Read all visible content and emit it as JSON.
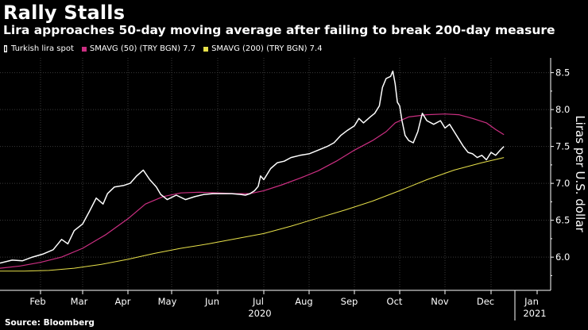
{
  "chart_data": {
    "type": "line",
    "title": "Rally Stalls",
    "subtitle": "Lira approaches 50-day moving average after failing to break 200-day measure",
    "ylabel": "Liras per U.S. dollar",
    "ylim": [
      5.55,
      8.7
    ],
    "yticks": [
      "6.0",
      "6.5",
      "7.0",
      "7.5",
      "8.0",
      "8.5"
    ],
    "month_labels": [
      "Feb",
      "Mar",
      "Apr",
      "May",
      "Jun",
      "Jul",
      "Aug",
      "Sep",
      "Oct",
      "Nov",
      "Dec",
      "Jan"
    ],
    "year_labels": [
      "2020",
      "2021"
    ],
    "source": "Source: Bloomberg",
    "legend": [
      {
        "name": "Turkish lira spot",
        "color": "#ffffff",
        "icon": "line-swatch-icon"
      },
      {
        "name": "SMAVG (50) (TRY BGN) 7.7",
        "color": "#cc2f82"
      },
      {
        "name": "SMAVG (200) (TRY BGN) 7.4",
        "color": "#e8e14a"
      }
    ],
    "series": [
      {
        "name": "Turkish lira spot",
        "color": "#ffffff",
        "width": 1.5,
        "points": [
          [
            0,
            5.92
          ],
          [
            0.3,
            5.96
          ],
          [
            0.55,
            5.95
          ],
          [
            0.8,
            6.0
          ],
          [
            1.05,
            6.04
          ],
          [
            1.3,
            6.1
          ],
          [
            1.5,
            6.24
          ],
          [
            1.65,
            6.18
          ],
          [
            1.8,
            6.36
          ],
          [
            2.0,
            6.45
          ],
          [
            2.15,
            6.62
          ],
          [
            2.3,
            6.8
          ],
          [
            2.45,
            6.72
          ],
          [
            2.55,
            6.86
          ],
          [
            2.7,
            6.95
          ],
          [
            2.9,
            6.97
          ],
          [
            3.05,
            7.0
          ],
          [
            3.2,
            7.1
          ],
          [
            3.35,
            7.18
          ],
          [
            3.5,
            7.05
          ],
          [
            3.65,
            6.95
          ],
          [
            3.75,
            6.85
          ],
          [
            3.9,
            6.78
          ],
          [
            4.1,
            6.84
          ],
          [
            4.3,
            6.78
          ],
          [
            4.5,
            6.82
          ],
          [
            4.7,
            6.85
          ],
          [
            4.9,
            6.86
          ],
          [
            5.1,
            6.86
          ],
          [
            5.3,
            6.86
          ],
          [
            5.5,
            6.85
          ],
          [
            5.6,
            6.84
          ],
          [
            5.7,
            6.86
          ],
          [
            5.8,
            6.9
          ],
          [
            5.88,
            6.96
          ],
          [
            5.93,
            7.1
          ],
          [
            6.0,
            7.05
          ],
          [
            6.15,
            7.2
          ],
          [
            6.3,
            7.28
          ],
          [
            6.45,
            7.3
          ],
          [
            6.6,
            7.35
          ],
          [
            6.8,
            7.38
          ],
          [
            7.0,
            7.4
          ],
          [
            7.2,
            7.45
          ],
          [
            7.4,
            7.5
          ],
          [
            7.55,
            7.55
          ],
          [
            7.7,
            7.65
          ],
          [
            7.85,
            7.72
          ],
          [
            8.0,
            7.78
          ],
          [
            8.1,
            7.88
          ],
          [
            8.2,
            7.82
          ],
          [
            8.35,
            7.9
          ],
          [
            8.45,
            7.95
          ],
          [
            8.55,
            8.05
          ],
          [
            8.62,
            8.3
          ],
          [
            8.7,
            8.42
          ],
          [
            8.8,
            8.45
          ],
          [
            8.85,
            8.52
          ],
          [
            8.9,
            8.35
          ],
          [
            8.95,
            8.1
          ],
          [
            9.0,
            8.05
          ],
          [
            9.05,
            7.85
          ],
          [
            9.12,
            7.65
          ],
          [
            9.2,
            7.58
          ],
          [
            9.3,
            7.55
          ],
          [
            9.4,
            7.7
          ],
          [
            9.5,
            7.95
          ],
          [
            9.6,
            7.85
          ],
          [
            9.75,
            7.8
          ],
          [
            9.9,
            7.85
          ],
          [
            10.0,
            7.75
          ],
          [
            10.1,
            7.8
          ],
          [
            10.2,
            7.7
          ],
          [
            10.3,
            7.6
          ],
          [
            10.4,
            7.5
          ],
          [
            10.5,
            7.42
          ],
          [
            10.6,
            7.4
          ],
          [
            10.7,
            7.35
          ],
          [
            10.8,
            7.38
          ],
          [
            10.9,
            7.32
          ],
          [
            11.0,
            7.42
          ],
          [
            11.1,
            7.38
          ],
          [
            11.2,
            7.45
          ],
          [
            11.28,
            7.5
          ]
        ]
      },
      {
        "name": "SMAVG (50) (TRY BGN) 7.7",
        "color": "#cc2f82",
        "width": 1.2,
        "points": [
          [
            0,
            5.85
          ],
          [
            0.5,
            5.88
          ],
          [
            1.0,
            5.93
          ],
          [
            1.5,
            6.0
          ],
          [
            2.0,
            6.12
          ],
          [
            2.5,
            6.3
          ],
          [
            3.0,
            6.52
          ],
          [
            3.4,
            6.72
          ],
          [
            3.8,
            6.82
          ],
          [
            4.2,
            6.87
          ],
          [
            4.6,
            6.88
          ],
          [
            5.0,
            6.87
          ],
          [
            5.4,
            6.86
          ],
          [
            5.7,
            6.86
          ],
          [
            6.0,
            6.9
          ],
          [
            6.4,
            6.98
          ],
          [
            6.8,
            7.07
          ],
          [
            7.2,
            7.17
          ],
          [
            7.6,
            7.3
          ],
          [
            8.0,
            7.45
          ],
          [
            8.4,
            7.58
          ],
          [
            8.7,
            7.7
          ],
          [
            8.9,
            7.82
          ],
          [
            9.2,
            7.9
          ],
          [
            9.6,
            7.93
          ],
          [
            10.0,
            7.94
          ],
          [
            10.3,
            7.93
          ],
          [
            10.6,
            7.88
          ],
          [
            10.9,
            7.82
          ],
          [
            11.1,
            7.73
          ],
          [
            11.28,
            7.66
          ]
        ]
      },
      {
        "name": "SMAVG (200) (TRY BGN) 7.4",
        "color": "#e8e14a",
        "width": 1.0,
        "points": [
          [
            0,
            5.81
          ],
          [
            0.6,
            5.81
          ],
          [
            1.2,
            5.82
          ],
          [
            1.8,
            5.85
          ],
          [
            2.4,
            5.9
          ],
          [
            3.0,
            5.97
          ],
          [
            3.6,
            6.05
          ],
          [
            4.2,
            6.12
          ],
          [
            4.8,
            6.18
          ],
          [
            5.4,
            6.25
          ],
          [
            6.0,
            6.32
          ],
          [
            6.6,
            6.42
          ],
          [
            7.2,
            6.53
          ],
          [
            7.8,
            6.64
          ],
          [
            8.4,
            6.76
          ],
          [
            9.0,
            6.9
          ],
          [
            9.6,
            7.05
          ],
          [
            10.2,
            7.18
          ],
          [
            10.8,
            7.28
          ],
          [
            11.28,
            7.35
          ]
        ]
      }
    ]
  }
}
